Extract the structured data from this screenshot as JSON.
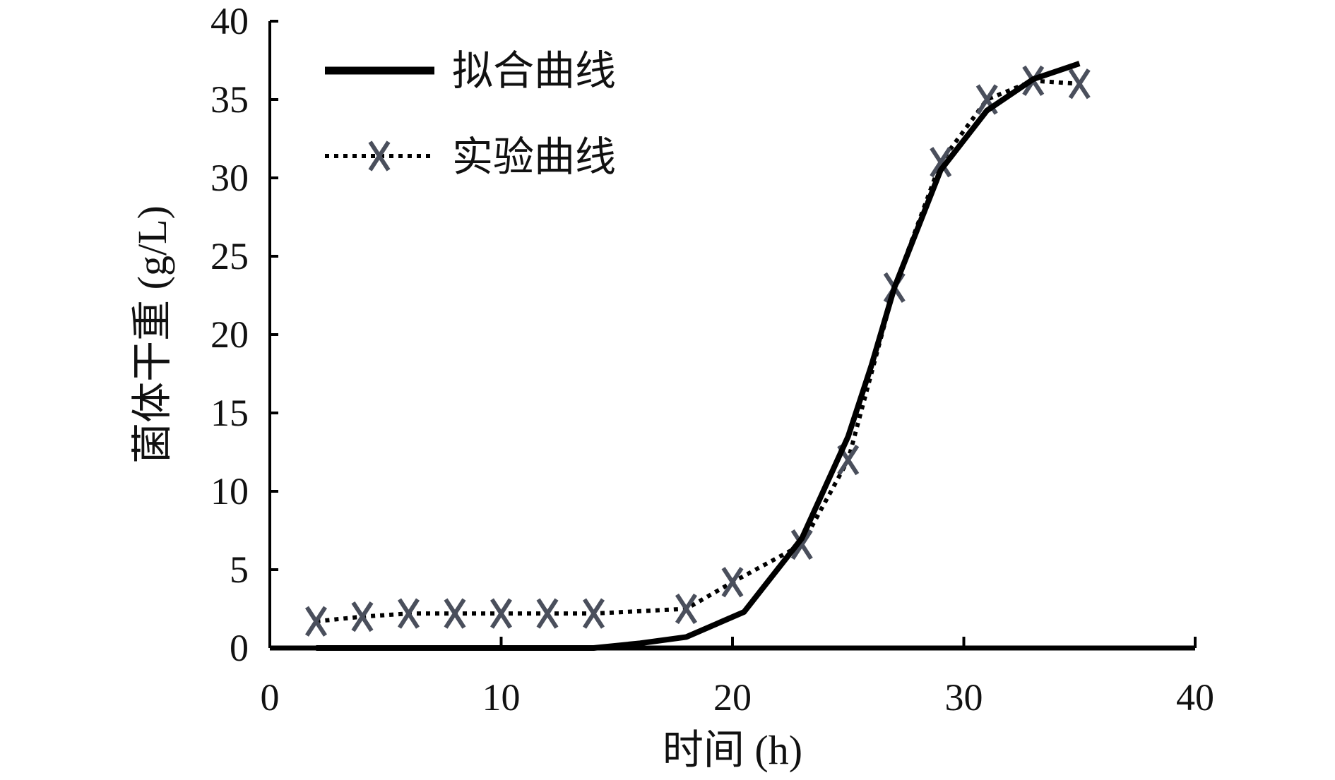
{
  "chart_data": {
    "type": "line",
    "title": "",
    "xlabel": "时间 (h)",
    "ylabel": "菌体干重 (g/L)",
    "xlim": [
      0,
      40
    ],
    "ylim": [
      0,
      40
    ],
    "xticks": [
      0,
      10,
      20,
      30,
      40
    ],
    "yticks": [
      0,
      5,
      10,
      15,
      20,
      25,
      30,
      35,
      40
    ],
    "grid": false,
    "legend_position": "top-left",
    "series": [
      {
        "name": "拟合曲线",
        "style": "solid",
        "color": "#000000",
        "x": [
          2,
          4,
          6,
          8,
          10,
          12,
          14,
          16,
          18,
          20.5,
          23,
          25,
          26,
          27,
          29,
          31,
          33,
          35
        ],
        "y": [
          0,
          0,
          0,
          0,
          0,
          0,
          0,
          0.3,
          0.7,
          2.3,
          7.0,
          13.5,
          18,
          23,
          30.5,
          34.3,
          36.3,
          37.3
        ]
      },
      {
        "name": "实验曲线",
        "style": "dotted",
        "marker": "x",
        "color": "#4a4f5c",
        "x": [
          2,
          4,
          6,
          8,
          10,
          12,
          14,
          18,
          20,
          23,
          25,
          27,
          29,
          31,
          33,
          35
        ],
        "y": [
          1.7,
          2.0,
          2.2,
          2.2,
          2.2,
          2.2,
          2.2,
          2.5,
          4.2,
          6.6,
          12.0,
          23.0,
          31.0,
          35.0,
          36.2,
          36.0
        ]
      }
    ]
  }
}
